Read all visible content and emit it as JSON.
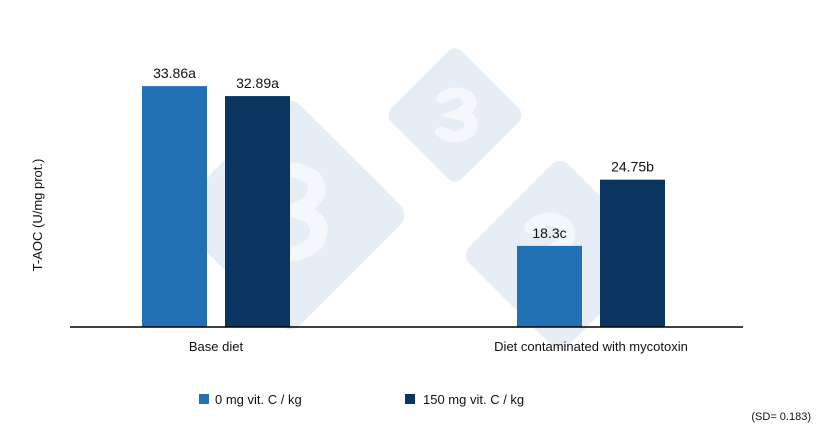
{
  "chart_data": {
    "type": "bar",
    "title": "",
    "xlabel": "",
    "ylabel": "T-AOC (U/mg prot.)",
    "ylim": [
      10.4,
      40.3
    ],
    "grid": false,
    "y_ticks_shown": false,
    "categories": [
      "Base diet",
      "Diet contaminated with mycotoxin"
    ],
    "series": [
      {
        "name": "0 mg vit. C / kg",
        "color": "#2270b6",
        "values": [
          33.86,
          18.3
        ],
        "labels": [
          "33.86a",
          "18.3c"
        ]
      },
      {
        "name": "150 mg vit. C / kg",
        "color": "#0b3561",
        "values": [
          32.89,
          24.75
        ],
        "labels": [
          "32.89a",
          "24.75b"
        ]
      }
    ],
    "legend_position": "bottom",
    "annotation": "(SD= 0.183)"
  }
}
